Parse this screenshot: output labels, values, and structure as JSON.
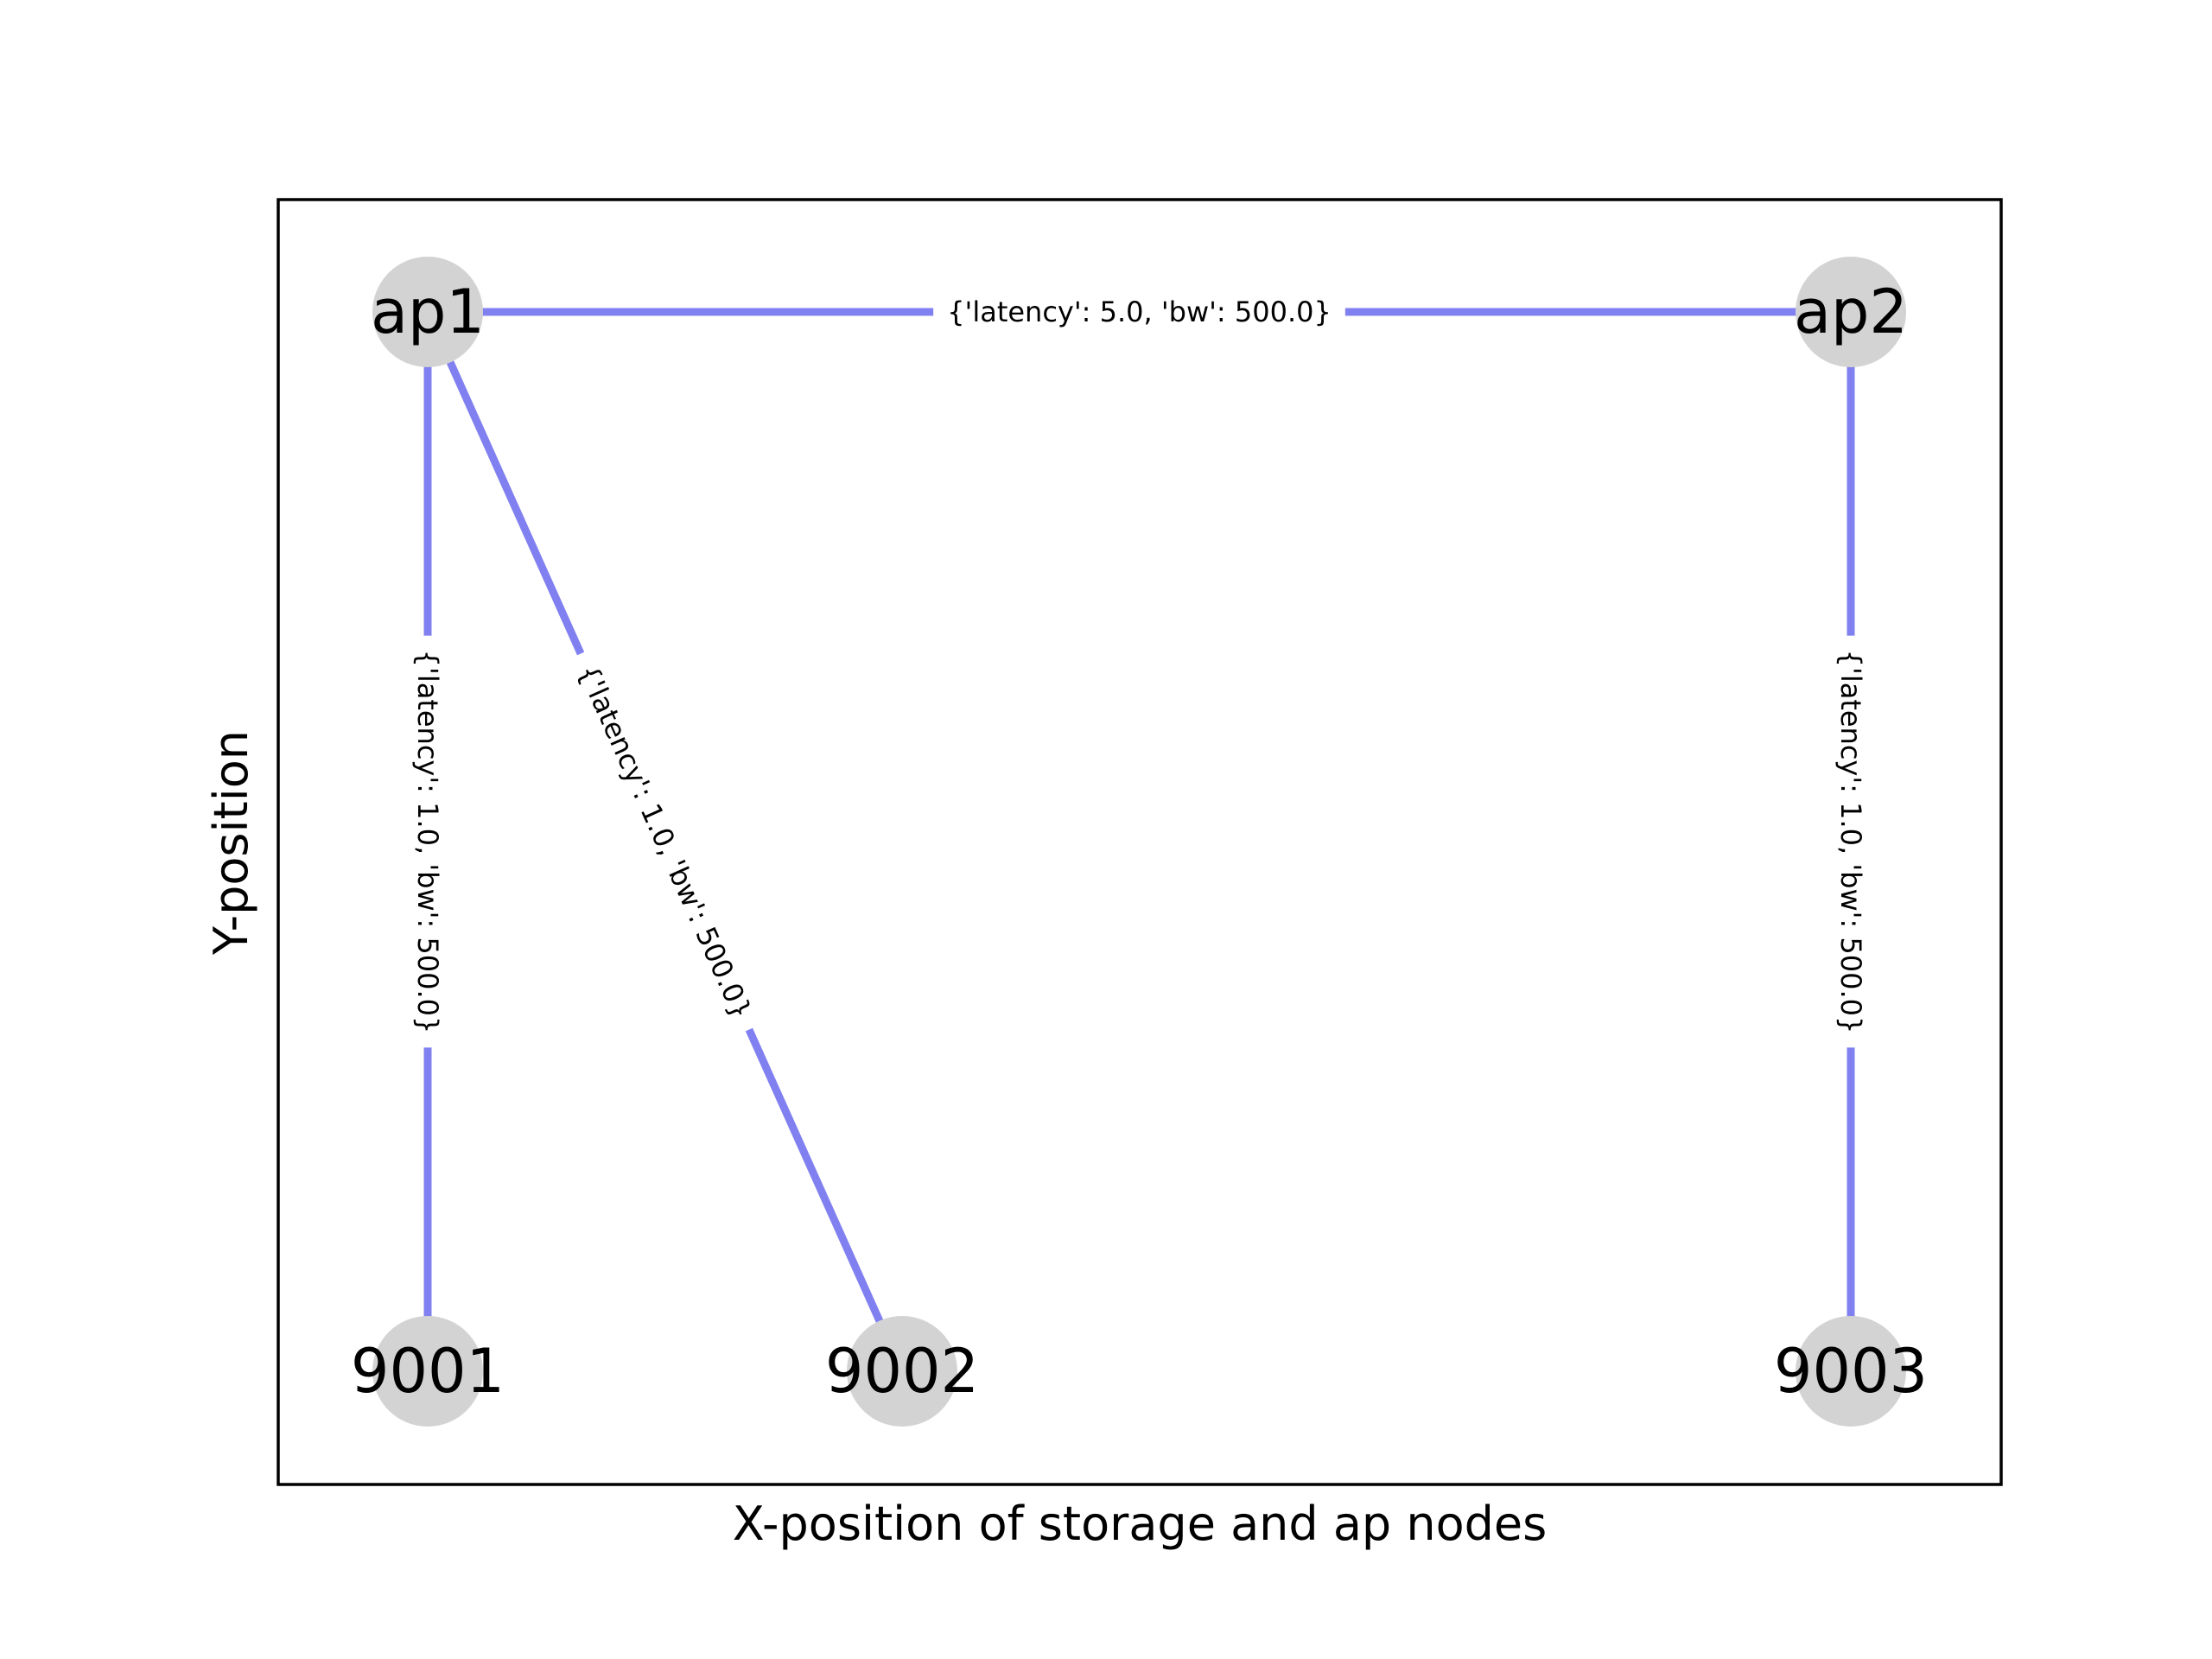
{
  "chart_data": {
    "type": "network",
    "xlabel": "X-position of storage and ap nodes",
    "ylabel": "Y-position",
    "node_color": "#d3d3d3",
    "edge_color": "#8080f0",
    "nodes": [
      {
        "id": "ap1",
        "label": "ap1",
        "x": 0,
        "y": 1
      },
      {
        "id": "ap2",
        "label": "ap2",
        "x": 3,
        "y": 1
      },
      {
        "id": "9001",
        "label": "9001",
        "x": 0,
        "y": 0
      },
      {
        "id": "9002",
        "label": "9002",
        "x": 1,
        "y": 0
      },
      {
        "id": "9003",
        "label": "9003",
        "x": 3,
        "y": 0
      }
    ],
    "edges": [
      {
        "source": "ap1",
        "target": "ap2",
        "label": "{'latency': 5.0, 'bw': 500.0}"
      },
      {
        "source": "ap1",
        "target": "9001",
        "label": "{'latency': 1.0, 'bw': 500.0}"
      },
      {
        "source": "ap1",
        "target": "9002",
        "label": "{'latency': 1.0, 'bw': 500.0}"
      },
      {
        "source": "ap2",
        "target": "9003",
        "label": "{'latency': 1.0, 'bw': 500.0}"
      }
    ]
  }
}
